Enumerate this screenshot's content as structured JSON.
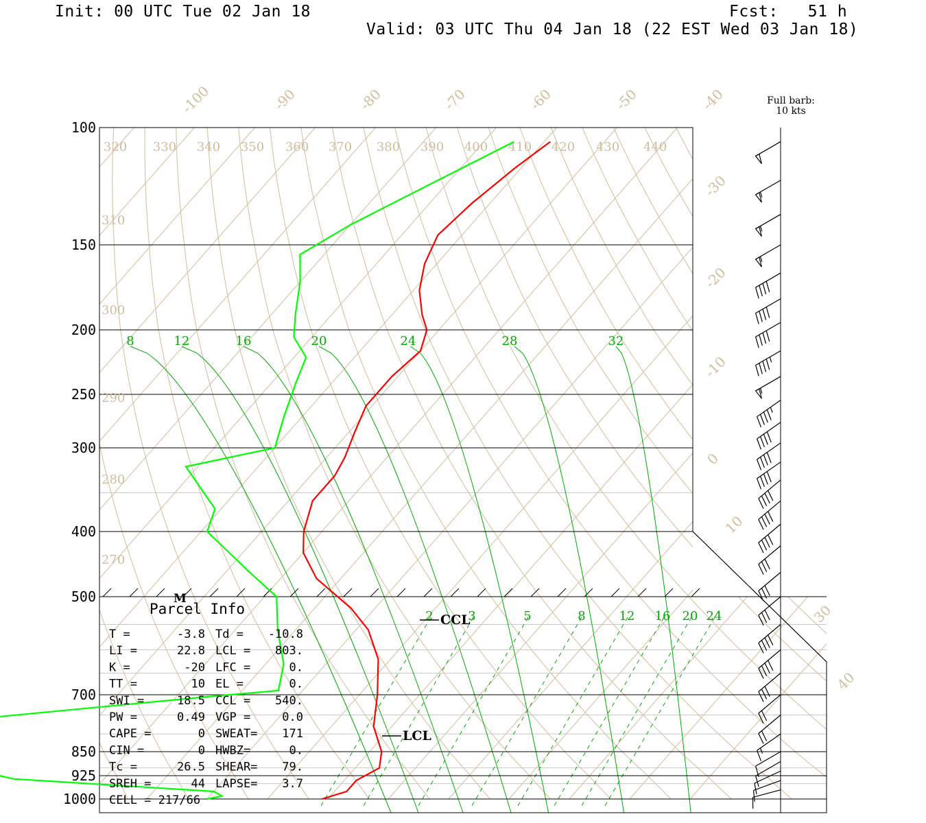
{
  "header": {
    "init": "Init: 00 UTC Tue 02 Jan 18",
    "fcst": "Fcst:   51 h",
    "valid": "Valid: 03 UTC Thu 04 Jan 18 (22 EST Wed 03 Jan 18)"
  },
  "wind_key": {
    "line1": "Full barb:",
    "line2": "10 kts"
  },
  "colors": {
    "temperature": "#ff0000",
    "dewpoint": "#00ff00",
    "mixing_ratio": "#00aa00",
    "background_lines": "#d2bc9c",
    "axes": "#000000"
  },
  "markers": {
    "ccl": "CCL",
    "lcl": "LCL",
    "m": "M"
  },
  "parcel_info": {
    "title": "Parcel Info",
    "rows": [
      {
        "k1": "T  =",
        "v1": "-3.8",
        "k2": "Td =",
        "v2": "-10.8"
      },
      {
        "k1": "LI =",
        "v1": "22.8",
        "k2": "LCL =",
        "v2": "803."
      },
      {
        "k1": "K  =",
        "v1": "-20",
        "k2": "LFC =",
        "v2": "0."
      },
      {
        "k1": "TT =",
        "v1": "10",
        "k2": "EL  =",
        "v2": "0."
      },
      {
        "k1": "SWI =",
        "v1": "18.5",
        "k2": "CCL =",
        "v2": "540."
      },
      {
        "k1": "PW =",
        "v1": "0.49",
        "k2": "VGP =",
        "v2": "0.0"
      },
      {
        "k1": "CAPE =",
        "v1": "0",
        "k2": "SWEAT=",
        "v2": "171"
      },
      {
        "k1": "CIN =",
        "v1": "0",
        "k2": "HWBZ=",
        "v2": "0."
      },
      {
        "k1": "Tc =",
        "v1": "26.5",
        "k2": "SHEAR=",
        "v2": "79."
      },
      {
        "k1": "SREH =",
        "v1": "44",
        "k2": "LAPSE=",
        "v2": "3.7"
      },
      {
        "k1": "CELL = 217/66",
        "v1": "",
        "k2": "",
        "v2": ""
      }
    ]
  },
  "chart_data": {
    "type": "line",
    "title": "",
    "xlabel": "",
    "ylabel": "",
    "y_axis": {
      "scale": "log",
      "ticks": [
        100,
        150,
        200,
        250,
        300,
        400,
        500,
        700,
        850,
        925,
        1000
      ],
      "ylim": [
        1000,
        100
      ]
    },
    "isotherm_labels": [
      -100,
      -90,
      -80,
      -70,
      -60,
      -50,
      -40,
      -30,
      -20,
      -10,
      0,
      10,
      30,
      40
    ],
    "theta_labels_top": [
      320,
      330,
      340,
      350,
      360,
      370,
      380,
      390,
      400,
      410,
      420,
      430,
      440
    ],
    "theta_labels_left": [
      310,
      300,
      290,
      280,
      270
    ],
    "mixing_ratio_labels_upper": [
      8,
      12,
      16,
      20,
      24,
      28,
      32
    ],
    "mixing_ratio_labels_lower": [
      2,
      3,
      5,
      8,
      12,
      16,
      20,
      24
    ],
    "series": [
      {
        "name": "",
        "color": "#ff0000",
        "points": [
          [
            105,
            -59
          ],
          [
            115,
            -61
          ],
          [
            130,
            -63
          ],
          [
            145,
            -64
          ],
          [
            160,
            -62
          ],
          [
            175,
            -59
          ],
          [
            190,
            -55
          ],
          [
            200,
            -52
          ],
          [
            215,
            -50
          ],
          [
            235,
            -51
          ],
          [
            260,
            -51
          ],
          [
            285,
            -49
          ],
          [
            310,
            -47
          ],
          [
            330,
            -46
          ],
          [
            360,
            -46
          ],
          [
            400,
            -43
          ],
          [
            430,
            -40
          ],
          [
            470,
            -34
          ],
          [
            520,
            -24
          ],
          [
            560,
            -18
          ],
          [
            620,
            -12
          ],
          [
            700,
            -7
          ],
          [
            780,
            -3
          ],
          [
            850,
            2
          ],
          [
            900,
            4
          ],
          [
            940,
            2
          ],
          [
            975,
            2
          ],
          [
            1000,
            -1
          ]
        ]
      },
      {
        "name": "",
        "color": "#00ff00",
        "points": [
          [
            105,
            -65
          ],
          [
            120,
            -72
          ],
          [
            140,
            -80
          ],
          [
            155,
            -84
          ],
          [
            170,
            -80
          ],
          [
            190,
            -76
          ],
          [
            205,
            -73
          ],
          [
            220,
            -68
          ],
          [
            240,
            -66
          ],
          [
            270,
            -63
          ],
          [
            300,
            -60
          ],
          [
            320,
            -72
          ],
          [
            370,
            -61
          ],
          [
            400,
            -59
          ],
          [
            460,
            -46
          ],
          [
            500,
            -38
          ],
          [
            560,
            -33
          ],
          [
            630,
            -27
          ],
          [
            690,
            -24
          ],
          [
            705,
            -35
          ],
          [
            760,
            -70
          ],
          [
            820,
            -85
          ],
          [
            870,
            -73
          ],
          [
            935,
            -55
          ],
          [
            975,
            -20
          ],
          [
            990,
            -18
          ],
          [
            1000,
            -20
          ]
        ]
      }
    ],
    "wind_barbs": [
      {
        "p": 105,
        "dir": 240,
        "kt": 50
      },
      {
        "p": 120,
        "dir": 240,
        "kt": 55
      },
      {
        "p": 135,
        "dir": 240,
        "kt": 55
      },
      {
        "p": 150,
        "dir": 240,
        "kt": 55
      },
      {
        "p": 165,
        "dir": 240,
        "kt": 40
      },
      {
        "p": 180,
        "dir": 240,
        "kt": 40
      },
      {
        "p": 195,
        "dir": 240,
        "kt": 40
      },
      {
        "p": 215,
        "dir": 240,
        "kt": 45
      },
      {
        "p": 235,
        "dir": 240,
        "kt": 55
      },
      {
        "p": 255,
        "dir": 235,
        "kt": 45
      },
      {
        "p": 275,
        "dir": 235,
        "kt": 40
      },
      {
        "p": 295,
        "dir": 235,
        "kt": 40
      },
      {
        "p": 315,
        "dir": 235,
        "kt": 40
      },
      {
        "p": 335,
        "dir": 230,
        "kt": 40
      },
      {
        "p": 360,
        "dir": 230,
        "kt": 40
      },
      {
        "p": 390,
        "dir": 230,
        "kt": 40
      },
      {
        "p": 420,
        "dir": 230,
        "kt": 30
      },
      {
        "p": 460,
        "dir": 230,
        "kt": 30
      },
      {
        "p": 500,
        "dir": 230,
        "kt": 30
      },
      {
        "p": 550,
        "dir": 230,
        "kt": 40
      },
      {
        "p": 600,
        "dir": 230,
        "kt": 40
      },
      {
        "p": 650,
        "dir": 230,
        "kt": 30
      },
      {
        "p": 700,
        "dir": 230,
        "kt": 20
      },
      {
        "p": 750,
        "dir": 230,
        "kt": 20
      },
      {
        "p": 800,
        "dir": 235,
        "kt": 15
      },
      {
        "p": 850,
        "dir": 240,
        "kt": 10
      },
      {
        "p": 880,
        "dir": 240,
        "kt": 10
      },
      {
        "p": 910,
        "dir": 245,
        "kt": 10
      },
      {
        "p": 940,
        "dir": 250,
        "kt": 10
      },
      {
        "p": 970,
        "dir": 255,
        "kt": 10
      }
    ]
  }
}
